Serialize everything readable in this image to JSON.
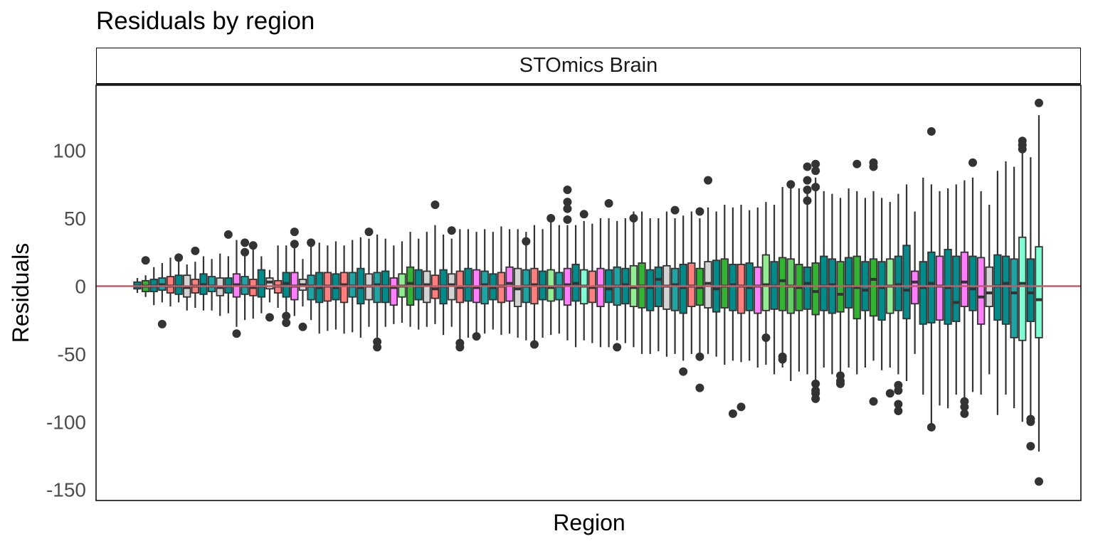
{
  "chart_data": {
    "type": "box",
    "title": "Residuals by region",
    "facet": "STOmics Brain",
    "xlabel": "Region",
    "ylabel": "Residuals",
    "ylim": [
      -158,
      148
    ],
    "yticks": [
      100,
      50,
      0,
      -50,
      -100,
      -150
    ],
    "ytick_labels": [
      "100",
      "50",
      "0",
      "-50",
      "-100",
      "-150"
    ],
    "grid": false,
    "legend": "none",
    "hline": {
      "y": 0,
      "colors": [
        "#c95a6a",
        "#444444"
      ]
    },
    "palette": [
      "#008b8b",
      "#ff7f7f",
      "#1fa3a3",
      "#d3d3d3",
      "#ff7fff",
      "#32b432",
      "#90ee90",
      "#66cd66",
      "#7fffd4",
      "#0a8a8a"
    ],
    "boxes": [
      {
        "c": 0,
        "q1": -2,
        "med": 0,
        "q3": 3,
        "lo": -5,
        "hi": 6,
        "out": []
      },
      {
        "c": 5,
        "q1": -4,
        "med": 0,
        "q3": 4,
        "lo": -8,
        "hi": 8,
        "out": [
          19
        ]
      },
      {
        "c": 0,
        "q1": -4,
        "med": 0,
        "q3": 5,
        "lo": -14,
        "hi": 14,
        "out": []
      },
      {
        "c": 2,
        "q1": -3,
        "med": 1,
        "q3": 6,
        "lo": -12,
        "hi": 17,
        "out": [
          -28
        ]
      },
      {
        "c": 1,
        "q1": -5,
        "med": 0,
        "q3": 7,
        "lo": -15,
        "hi": 21,
        "out": []
      },
      {
        "c": 0,
        "q1": -6,
        "med": 0,
        "q3": 8,
        "lo": -12,
        "hi": 18,
        "out": [
          21
        ]
      },
      {
        "c": 3,
        "q1": -8,
        "med": -1,
        "q3": 8,
        "lo": -18,
        "hi": 16,
        "out": []
      },
      {
        "c": 1,
        "q1": -5,
        "med": 0,
        "q3": 5,
        "lo": -16,
        "hi": 18,
        "out": [
          26
        ]
      },
      {
        "c": 0,
        "q1": -6,
        "med": 1,
        "q3": 9,
        "lo": -18,
        "hi": 22,
        "out": []
      },
      {
        "c": 2,
        "q1": -4,
        "med": 0,
        "q3": 7,
        "lo": -18,
        "hi": 20,
        "out": []
      },
      {
        "c": 3,
        "q1": -7,
        "med": -1,
        "q3": 6,
        "lo": -22,
        "hi": 24,
        "out": []
      },
      {
        "c": 0,
        "q1": -5,
        "med": 0,
        "q3": 6,
        "lo": -20,
        "hi": 22,
        "out": [
          38
        ]
      },
      {
        "c": 4,
        "q1": -8,
        "med": 1,
        "q3": 9,
        "lo": -30,
        "hi": 34,
        "out": [
          -35
        ]
      },
      {
        "c": 2,
        "q1": -6,
        "med": 0,
        "q3": 7,
        "lo": -25,
        "hi": 24,
        "out": [
          32,
          25
        ]
      },
      {
        "c": 1,
        "q1": -7,
        "med": -1,
        "q3": 5,
        "lo": -24,
        "hi": 28,
        "out": [
          30
        ]
      },
      {
        "c": 0,
        "q1": -8,
        "med": 0,
        "q3": 12,
        "lo": -20,
        "hi": 22,
        "out": []
      },
      {
        "c": 3,
        "q1": -2,
        "med": 3,
        "q3": 6,
        "lo": -12,
        "hi": 12,
        "out": [
          -23
        ]
      },
      {
        "c": 1,
        "q1": -5,
        "med": 0,
        "q3": 4,
        "lo": -16,
        "hi": 30,
        "out": []
      },
      {
        "c": 0,
        "q1": -8,
        "med": 2,
        "q3": 10,
        "lo": -24,
        "hi": 30,
        "out": [
          -22,
          -27
        ]
      },
      {
        "c": 4,
        "q1": -10,
        "med": 0,
        "q3": 10,
        "lo": -22,
        "hi": 30,
        "out": [
          40,
          31
        ]
      },
      {
        "c": 3,
        "q1": -3,
        "med": 1,
        "q3": 5,
        "lo": -15,
        "hi": 20,
        "out": [
          -30
        ]
      },
      {
        "c": 2,
        "q1": -10,
        "med": 0,
        "q3": 8,
        "lo": -25,
        "hi": 30,
        "out": [
          32
        ]
      },
      {
        "c": 0,
        "q1": -12,
        "med": -1,
        "q3": 10,
        "lo": -35,
        "hi": 32,
        "out": []
      },
      {
        "c": 1,
        "q1": -11,
        "med": 0,
        "q3": 10,
        "lo": -33,
        "hi": 30,
        "out": []
      },
      {
        "c": 0,
        "q1": -10,
        "med": -1,
        "q3": 9,
        "lo": -32,
        "hi": 33,
        "out": []
      },
      {
        "c": 1,
        "q1": -12,
        "med": 1,
        "q3": 10,
        "lo": -35,
        "hi": 30,
        "out": []
      },
      {
        "c": 2,
        "q1": -8,
        "med": 0,
        "q3": 10,
        "lo": -34,
        "hi": 34,
        "out": []
      },
      {
        "c": 0,
        "q1": -13,
        "med": -1,
        "q3": 13,
        "lo": -38,
        "hi": 36,
        "out": []
      },
      {
        "c": 3,
        "q1": -10,
        "med": 0,
        "q3": 9,
        "lo": -30,
        "hi": 35,
        "out": [
          40
        ]
      },
      {
        "c": 2,
        "q1": -12,
        "med": 1,
        "q3": 10,
        "lo": -40,
        "hi": 38,
        "out": [
          -41,
          -45
        ]
      },
      {
        "c": 0,
        "q1": -12,
        "med": 0,
        "q3": 11,
        "lo": -30,
        "hi": 35,
        "out": []
      },
      {
        "c": 4,
        "q1": -14,
        "med": -1,
        "q3": 6,
        "lo": -28,
        "hi": 30,
        "out": []
      },
      {
        "c": 6,
        "q1": -8,
        "med": 0,
        "q3": 9,
        "lo": -27,
        "hi": 33,
        "out": []
      },
      {
        "c": 5,
        "q1": -14,
        "med": 2,
        "q3": 14,
        "lo": -30,
        "hi": 40,
        "out": []
      },
      {
        "c": 0,
        "q1": -10,
        "med": 0,
        "q3": 12,
        "lo": -32,
        "hi": 35,
        "out": []
      },
      {
        "c": 3,
        "q1": -12,
        "med": 1,
        "q3": 11,
        "lo": -30,
        "hi": 40,
        "out": []
      },
      {
        "c": 1,
        "q1": -9,
        "med": -2,
        "q3": 8,
        "lo": -28,
        "hi": 45,
        "out": [
          60
        ]
      },
      {
        "c": 0,
        "q1": -13,
        "med": 0,
        "q3": 12,
        "lo": -36,
        "hi": 38,
        "out": []
      },
      {
        "c": 3,
        "q1": -10,
        "med": 1,
        "q3": 9,
        "lo": -30,
        "hi": 35,
        "out": [
          41
        ]
      },
      {
        "c": 1,
        "q1": -12,
        "med": -1,
        "q3": 11,
        "lo": -40,
        "hi": 42,
        "out": [
          -42,
          -45
        ]
      },
      {
        "c": 0,
        "q1": -11,
        "med": 0,
        "q3": 13,
        "lo": -38,
        "hi": 42,
        "out": []
      },
      {
        "c": 4,
        "q1": -12,
        "med": -1,
        "q3": 12,
        "lo": -35,
        "hi": 40,
        "out": [
          -37
        ]
      },
      {
        "c": 2,
        "q1": -13,
        "med": 1,
        "q3": 11,
        "lo": -35,
        "hi": 42,
        "out": []
      },
      {
        "c": 0,
        "q1": -10,
        "med": -1,
        "q3": 9,
        "lo": -32,
        "hi": 40,
        "out": []
      },
      {
        "c": 1,
        "q1": -12,
        "med": 0,
        "q3": 10,
        "lo": -36,
        "hi": 44,
        "out": []
      },
      {
        "c": 4,
        "q1": -11,
        "med": 2,
        "q3": 14,
        "lo": -35,
        "hi": 42,
        "out": []
      },
      {
        "c": 3,
        "q1": -15,
        "med": -2,
        "q3": 13,
        "lo": -38,
        "hi": 42,
        "out": []
      },
      {
        "c": 2,
        "q1": -12,
        "med": 0,
        "q3": 12,
        "lo": -40,
        "hi": 40,
        "out": [
          33
        ]
      },
      {
        "c": 1,
        "q1": -13,
        "med": 1,
        "q3": 13,
        "lo": -42,
        "hi": 45,
        "out": [
          -43
        ]
      },
      {
        "c": 0,
        "q1": -10,
        "med": 0,
        "q3": 11,
        "lo": -38,
        "hi": 42,
        "out": []
      },
      {
        "c": 6,
        "q1": -11,
        "med": -1,
        "q3": 12,
        "lo": -36,
        "hi": 50,
        "out": [
          50
        ]
      },
      {
        "c": 2,
        "q1": -10,
        "med": 0,
        "q3": 10,
        "lo": -35,
        "hi": 45,
        "out": []
      },
      {
        "c": 4,
        "q1": -14,
        "med": 1,
        "q3": 13,
        "lo": -40,
        "hi": 45,
        "out": [
          71,
          62,
          57,
          49
        ]
      },
      {
        "c": 0,
        "q1": -11,
        "med": 2,
        "q3": 16,
        "lo": -45,
        "hi": 45,
        "out": []
      },
      {
        "c": 8,
        "q1": -13,
        "med": 0,
        "q3": 12,
        "lo": -40,
        "hi": 48,
        "out": [
          53
        ]
      },
      {
        "c": 1,
        "q1": -12,
        "med": -1,
        "q3": 11,
        "lo": -42,
        "hi": 46,
        "out": []
      },
      {
        "c": 4,
        "q1": -15,
        "med": 0,
        "q3": 13,
        "lo": -45,
        "hi": 50,
        "out": []
      },
      {
        "c": 0,
        "q1": -12,
        "med": -2,
        "q3": 12,
        "lo": -45,
        "hi": 50,
        "out": [
          61
        ]
      },
      {
        "c": 2,
        "q1": -14,
        "med": 0,
        "q3": 14,
        "lo": -40,
        "hi": 48,
        "out": [
          -45
        ]
      },
      {
        "c": 0,
        "q1": -13,
        "med": 1,
        "q3": 13,
        "lo": -42,
        "hi": 50,
        "out": []
      },
      {
        "c": 6,
        "q1": -15,
        "med": -1,
        "q3": 15,
        "lo": -45,
        "hi": 55,
        "out": [
          50
        ]
      },
      {
        "c": 5,
        "q1": -16,
        "med": 0,
        "q3": 17,
        "lo": -50,
        "hi": 55,
        "out": []
      },
      {
        "c": 0,
        "q1": -18,
        "med": -1,
        "q3": 12,
        "lo": -50,
        "hi": 50,
        "out": []
      },
      {
        "c": 9,
        "q1": -15,
        "med": 5,
        "q3": 14,
        "lo": -48,
        "hi": 50,
        "out": []
      },
      {
        "c": 3,
        "q1": -17,
        "med": 0,
        "q3": 15,
        "lo": -52,
        "hi": 55,
        "out": []
      },
      {
        "c": 2,
        "q1": -18,
        "med": 1,
        "q3": 13,
        "lo": -50,
        "hi": 50,
        "out": [
          56
        ]
      },
      {
        "c": 0,
        "q1": -20,
        "med": -1,
        "q3": 16,
        "lo": -55,
        "hi": 52,
        "out": [
          -63
        ]
      },
      {
        "c": 1,
        "q1": -15,
        "med": 0,
        "q3": 17,
        "lo": -50,
        "hi": 55,
        "out": []
      },
      {
        "c": 5,
        "q1": -14,
        "med": -1,
        "q3": 13,
        "lo": -55,
        "hi": 50,
        "out": [
          55,
          -52,
          -75
        ]
      },
      {
        "c": 3,
        "q1": -16,
        "med": 2,
        "q3": 18,
        "lo": -50,
        "hi": 58,
        "out": [
          78
        ]
      },
      {
        "c": 0,
        "q1": -19,
        "med": -2,
        "q3": 19,
        "lo": -52,
        "hi": 55,
        "out": []
      },
      {
        "c": 5,
        "q1": -16,
        "med": 0,
        "q3": 20,
        "lo": -58,
        "hi": 60,
        "out": []
      },
      {
        "c": 0,
        "q1": -18,
        "med": 1,
        "q3": 16,
        "lo": -55,
        "hi": 58,
        "out": [
          -94
        ]
      },
      {
        "c": 1,
        "q1": -20,
        "med": 0,
        "q3": 16,
        "lo": -56,
        "hi": 60,
        "out": [
          -89
        ]
      },
      {
        "c": 0,
        "q1": -18,
        "med": -1,
        "q3": 17,
        "lo": -55,
        "hi": 56,
        "out": []
      },
      {
        "c": 4,
        "q1": -20,
        "med": 0,
        "q3": 14,
        "lo": -60,
        "hi": 58,
        "out": []
      },
      {
        "c": 6,
        "q1": -18,
        "med": 1,
        "q3": 23,
        "lo": -58,
        "hi": 62,
        "out": [
          -38
        ]
      },
      {
        "c": 0,
        "q1": -17,
        "med": 0,
        "q3": 18,
        "lo": -65,
        "hi": 60,
        "out": []
      },
      {
        "c": 5,
        "q1": -18,
        "med": 4,
        "q3": 21,
        "lo": -60,
        "hi": 73,
        "out": [
          -52,
          -54
        ]
      },
      {
        "c": 7,
        "q1": -20,
        "med": 0,
        "q3": 20,
        "lo": -70,
        "hi": 75,
        "out": [
          75
        ]
      },
      {
        "c": 5,
        "q1": -18,
        "med": -1,
        "q3": 16,
        "lo": -63,
        "hi": 72,
        "out": []
      },
      {
        "c": 0,
        "q1": -17,
        "med": 2,
        "q3": 14,
        "lo": -65,
        "hi": 70,
        "out": [
          88,
          78,
          71,
          63
        ]
      },
      {
        "c": 5,
        "q1": -21,
        "med": -4,
        "q3": 17,
        "lo": -70,
        "hi": 80,
        "out": [
          90,
          85,
          73,
          -72,
          -77,
          -79,
          -83
        ]
      },
      {
        "c": 0,
        "q1": -18,
        "med": 0,
        "q3": 22,
        "lo": -60,
        "hi": 70,
        "out": []
      },
      {
        "c": 9,
        "q1": -20,
        "med": 1,
        "q3": 20,
        "lo": -65,
        "hi": 68,
        "out": []
      },
      {
        "c": 5,
        "q1": -19,
        "med": -6,
        "q3": 18,
        "lo": -68,
        "hi": 65,
        "out": [
          -66,
          -70,
          -72
        ]
      },
      {
        "c": 0,
        "q1": -16,
        "med": 0,
        "q3": 21,
        "lo": -60,
        "hi": 72,
        "out": []
      },
      {
        "c": 5,
        "q1": -24,
        "med": -1,
        "q3": 22,
        "lo": -65,
        "hi": 70,
        "out": [
          90
        ]
      },
      {
        "c": 0,
        "q1": -18,
        "med": -3,
        "q3": 18,
        "lo": -60,
        "hi": 65,
        "out": []
      },
      {
        "c": 5,
        "q1": -22,
        "med": 5,
        "q3": 20,
        "lo": -55,
        "hi": 70,
        "out": [
          91,
          88,
          -85
        ]
      },
      {
        "c": 0,
        "q1": -25,
        "med": -1,
        "q3": 18,
        "lo": -62,
        "hi": 65,
        "out": []
      },
      {
        "c": 6,
        "q1": -20,
        "med": 0,
        "q3": 20,
        "lo": -60,
        "hi": 62,
        "out": [
          -79
        ]
      },
      {
        "c": 0,
        "q1": -18,
        "med": 1,
        "q3": 22,
        "lo": -65,
        "hi": 68,
        "out": [
          -73,
          -77,
          -87,
          -92
        ]
      },
      {
        "c": 9,
        "q1": -24,
        "med": -3,
        "q3": 30,
        "lo": -70,
        "hi": 75,
        "out": []
      },
      {
        "c": 4,
        "q1": -13,
        "med": 3,
        "q3": 11,
        "lo": -50,
        "hi": 55,
        "out": []
      },
      {
        "c": 0,
        "q1": -28,
        "med": -1,
        "q3": 18,
        "lo": -80,
        "hi": 80,
        "out": []
      },
      {
        "c": 0,
        "q1": -27,
        "med": 2,
        "q3": 25,
        "lo": -103,
        "hi": 75,
        "out": [
          114,
          -104
        ]
      },
      {
        "c": 4,
        "q1": -25,
        "med": 0,
        "q3": 22,
        "lo": -88,
        "hi": 70,
        "out": []
      },
      {
        "c": 0,
        "q1": -28,
        "med": -1,
        "q3": 27,
        "lo": -90,
        "hi": 72,
        "out": []
      },
      {
        "c": 9,
        "q1": -26,
        "med": -12,
        "q3": 22,
        "lo": -80,
        "hi": 75,
        "out": []
      },
      {
        "c": 4,
        "q1": -15,
        "med": 3,
        "q3": 25,
        "lo": -84,
        "hi": 78,
        "out": [
          -85,
          -89,
          -94
        ]
      },
      {
        "c": 0,
        "q1": -18,
        "med": -2,
        "q3": 22,
        "lo": -78,
        "hi": 80,
        "out": [
          91
        ]
      },
      {
        "c": 4,
        "q1": -28,
        "med": -8,
        "q3": 21,
        "lo": -80,
        "hi": 70,
        "out": []
      },
      {
        "c": 3,
        "q1": -15,
        "med": -5,
        "q3": 14,
        "lo": -65,
        "hi": 60,
        "out": []
      },
      {
        "c": 0,
        "q1": -25,
        "med": 0,
        "q3": 23,
        "lo": -95,
        "hi": 85,
        "out": []
      },
      {
        "c": 9,
        "q1": -28,
        "med": 2,
        "q3": 22,
        "lo": -80,
        "hi": 92,
        "out": []
      },
      {
        "c": 2,
        "q1": -38,
        "med": -5,
        "q3": 20,
        "lo": -90,
        "hi": 88,
        "out": []
      },
      {
        "c": 8,
        "q1": -40,
        "med": 2,
        "q3": 36,
        "lo": -100,
        "hi": 100,
        "out": [
          107,
          104,
          101
        ]
      },
      {
        "c": 0,
        "q1": -26,
        "med": -5,
        "q3": 20,
        "lo": -95,
        "hi": 95,
        "out": [
          -98,
          -100,
          -118
        ]
      },
      {
        "c": 8,
        "q1": -38,
        "med": -10,
        "q3": 29,
        "lo": -122,
        "hi": 126,
        "out": [
          135,
          -144
        ]
      }
    ]
  }
}
